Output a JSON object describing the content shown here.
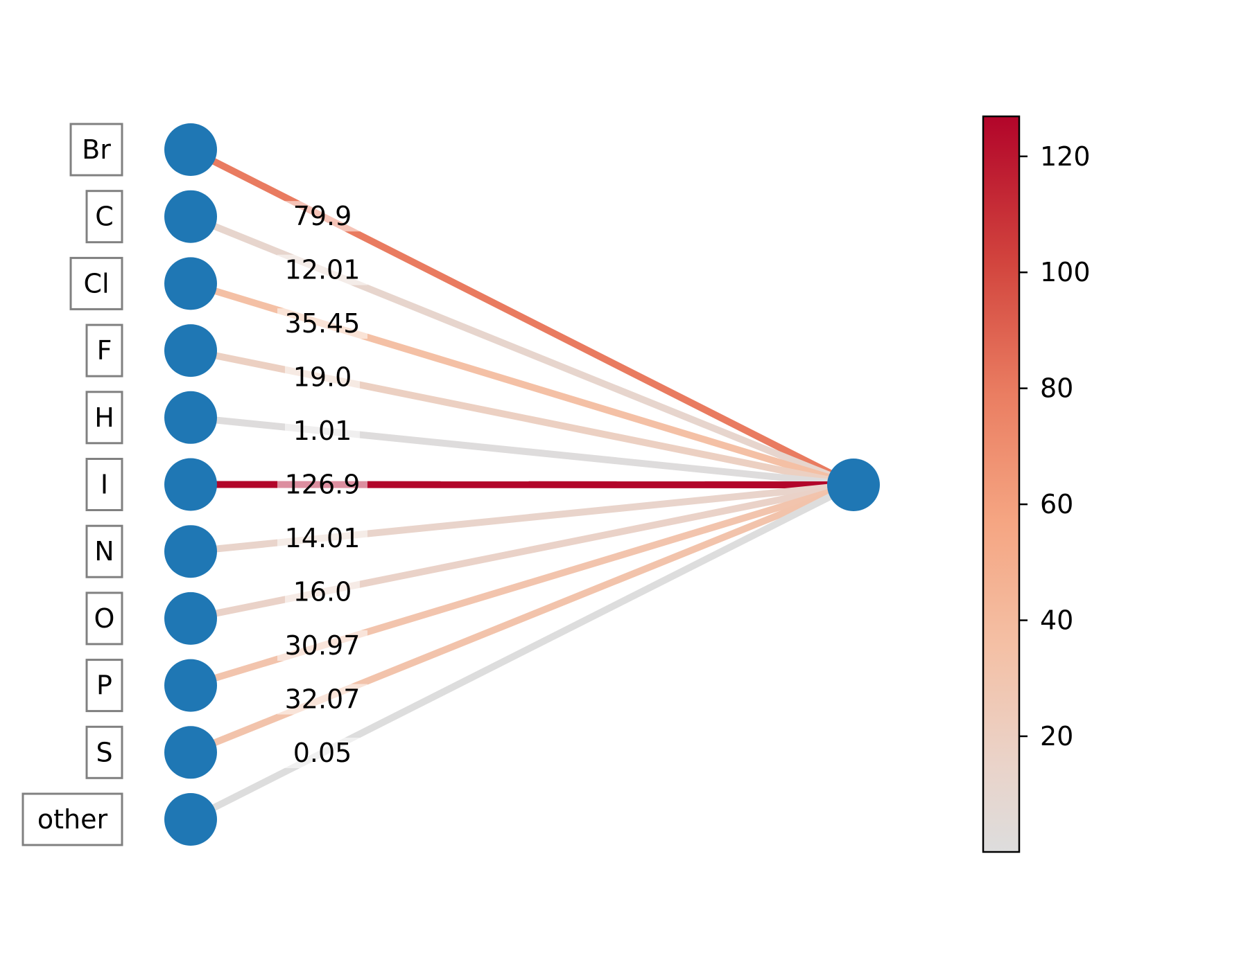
{
  "chart_data": {
    "type": "network",
    "source_nodes": [
      "Br",
      "C",
      "Cl",
      "F",
      "H",
      "I",
      "N",
      "O",
      "P",
      "S",
      "other"
    ],
    "edges": [
      {
        "source": "Br",
        "value": 79.9,
        "label": "79.9"
      },
      {
        "source": "C",
        "value": 12.01,
        "label": "12.01"
      },
      {
        "source": "Cl",
        "value": 35.45,
        "label": "35.45"
      },
      {
        "source": "F",
        "value": 19.0,
        "label": "19.0"
      },
      {
        "source": "H",
        "value": 1.01,
        "label": "1.01"
      },
      {
        "source": "I",
        "value": 126.9,
        "label": "126.9"
      },
      {
        "source": "N",
        "value": 14.01,
        "label": "14.01"
      },
      {
        "source": "O",
        "value": 16.0,
        "label": "16.0"
      },
      {
        "source": "P",
        "value": 30.97,
        "label": "30.97"
      },
      {
        "source": "S",
        "value": 32.07,
        "label": "32.07"
      },
      {
        "source": "other",
        "value": 0.05,
        "label": "0.05"
      }
    ],
    "colorbar": {
      "colormap": "coolwarm-upper (grey to red)",
      "range": [
        0.05,
        126.9
      ],
      "ticks": [
        20,
        40,
        60,
        80,
        100,
        120
      ],
      "tick_labels": [
        "20",
        "40",
        "60",
        "80",
        "100",
        "120"
      ]
    },
    "colors": {
      "node": "#1f77b4",
      "label_box_border": "#808080",
      "low": "#dcdcdc",
      "high": "#b2052a"
    }
  }
}
